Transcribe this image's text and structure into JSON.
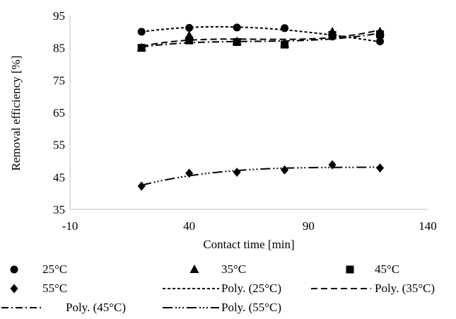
{
  "chart_data": {
    "type": "scatter",
    "title": "",
    "xlabel": "Contact time [min]",
    "ylabel": "Removal efficiency [%]",
    "xlim": [
      -10,
      140
    ],
    "ylim": [
      35,
      95
    ],
    "x_ticks": [
      -10,
      40,
      90,
      140
    ],
    "y_ticks": [
      35,
      45,
      55,
      65,
      75,
      85,
      95
    ],
    "x_tick_labels": [
      "-10",
      "40",
      "90",
      "140"
    ],
    "y_tick_labels": [
      "35",
      "45",
      "55",
      "65",
      "75",
      "85",
      "95"
    ],
    "grid": false,
    "legend_position": "bottom",
    "x": [
      20,
      40,
      60,
      80,
      100,
      120
    ],
    "series": [
      {
        "name": "25°C",
        "marker": "circle",
        "values": [
          90.0,
          91.2,
          91.3,
          91.1,
          88.5,
          87.0
        ],
        "trend_name": "Poly. (25°C)",
        "trend_dash": "4,3"
      },
      {
        "name": "35°C",
        "marker": "triangle",
        "values": [
          85.0,
          88.8,
          87.0,
          86.2,
          90.0,
          90.0
        ],
        "trend_name": "Poly. (35°C)",
        "trend_dash": "9,5"
      },
      {
        "name": "45°C",
        "marker": "square",
        "values": [
          85.0,
          87.3,
          86.8,
          86.0,
          89.0,
          89.2
        ],
        "trend_name": "Poly. (45°C)",
        "trend_dash": "10,4,2,4"
      },
      {
        "name": "55°C",
        "marker": "diamond",
        "values": [
          42.2,
          46.2,
          46.5,
          47.2,
          48.8,
          47.8
        ],
        "trend_name": "Poly. (55°C)",
        "trend_dash": "14,4,2,3,2,3,2,4"
      }
    ]
  }
}
